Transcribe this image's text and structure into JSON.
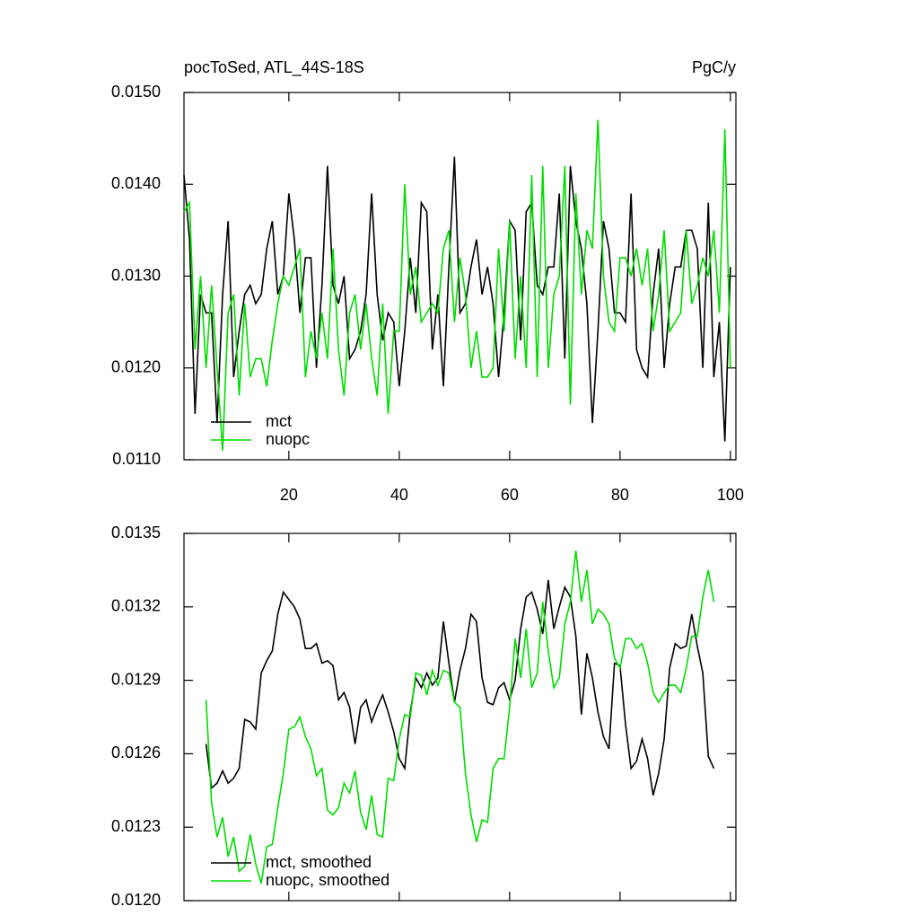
{
  "chart_data": [
    {
      "type": "line",
      "title": "pocToSed, ATL_44S-18S",
      "units": "PgC/y",
      "x": [
        1,
        2,
        3,
        4,
        5,
        6,
        7,
        8,
        9,
        10,
        11,
        12,
        13,
        14,
        15,
        16,
        17,
        18,
        19,
        20,
        21,
        22,
        23,
        24,
        25,
        26,
        27,
        28,
        29,
        30,
        31,
        32,
        33,
        34,
        35,
        36,
        37,
        38,
        39,
        40,
        41,
        42,
        43,
        44,
        45,
        46,
        47,
        48,
        49,
        50,
        51,
        52,
        53,
        54,
        55,
        56,
        57,
        58,
        59,
        60,
        61,
        62,
        63,
        64,
        65,
        66,
        67,
        68,
        69,
        70,
        71,
        72,
        73,
        74,
        75,
        76,
        77,
        78,
        79,
        80,
        81,
        82,
        83,
        84,
        85,
        86,
        87,
        88,
        89,
        90,
        91,
        92,
        93,
        94,
        95,
        96,
        97,
        98,
        99,
        100
      ],
      "series": [
        {
          "name": "mct",
          "color": "#000000",
          "values": [
            0.0141,
            0.0134,
            0.0115,
            0.0128,
            0.0126,
            0.0126,
            0.0114,
            0.0128,
            0.0136,
            0.0119,
            0.0124,
            0.0128,
            0.0129,
            0.0127,
            0.0128,
            0.0133,
            0.0136,
            0.0128,
            0.013,
            0.0139,
            0.0134,
            0.0126,
            0.0132,
            0.0132,
            0.012,
            0.0129,
            0.0142,
            0.0129,
            0.0127,
            0.013,
            0.0121,
            0.0122,
            0.0124,
            0.0128,
            0.0139,
            0.0128,
            0.0123,
            0.0126,
            0.0125,
            0.0118,
            0.0124,
            0.0132,
            0.0126,
            0.0138,
            0.0137,
            0.0122,
            0.0128,
            0.0118,
            0.0131,
            0.0143,
            0.0126,
            0.0127,
            0.0131,
            0.0134,
            0.0128,
            0.0131,
            0.0127,
            0.0119,
            0.0126,
            0.0136,
            0.0135,
            0.0123,
            0.0137,
            0.0138,
            0.0129,
            0.0128,
            0.0131,
            0.0131,
            0.0139,
            0.0121,
            0.0142,
            0.0136,
            0.0133,
            0.0127,
            0.0114,
            0.0124,
            0.0136,
            0.0133,
            0.0126,
            0.0126,
            0.0125,
            0.0139,
            0.0122,
            0.012,
            0.0119,
            0.0128,
            0.0133,
            0.012,
            0.0127,
            0.0131,
            0.0131,
            0.0135,
            0.0135,
            0.0133,
            0.012,
            0.0138,
            0.0119,
            0.0125,
            0.0112,
            0.0131
          ]
        },
        {
          "name": "nuopc",
          "color": "#00dd00",
          "values": [
            0.0137,
            0.0138,
            0.0122,
            0.013,
            0.012,
            0.0129,
            0.012,
            0.0111,
            0.0126,
            0.0128,
            0.0117,
            0.0127,
            0.0119,
            0.0121,
            0.0121,
            0.0118,
            0.0123,
            0.0127,
            0.013,
            0.0129,
            0.0131,
            0.0133,
            0.0119,
            0.0124,
            0.0121,
            0.0126,
            0.0121,
            0.0133,
            0.0122,
            0.0117,
            0.0126,
            0.0128,
            0.0122,
            0.0127,
            0.0121,
            0.0117,
            0.0127,
            0.0115,
            0.0124,
            0.0124,
            0.014,
            0.0128,
            0.0131,
            0.0125,
            0.0126,
            0.0127,
            0.0126,
            0.0133,
            0.0135,
            0.0125,
            0.0132,
            0.0128,
            0.012,
            0.0124,
            0.0119,
            0.0119,
            0.012,
            0.0133,
            0.0124,
            0.0136,
            0.0121,
            0.013,
            0.012,
            0.0141,
            0.0119,
            0.0142,
            0.012,
            0.0128,
            0.013,
            0.0142,
            0.0116,
            0.0139,
            0.0128,
            0.0135,
            0.0133,
            0.0147,
            0.013,
            0.0125,
            0.0124,
            0.0132,
            0.0132,
            0.013,
            0.0133,
            0.0129,
            0.0133,
            0.0124,
            0.0128,
            0.0135,
            0.0124,
            0.0125,
            0.0126,
            0.0135,
            0.0127,
            0.0129,
            0.0132,
            0.013,
            0.0135,
            0.0126,
            0.0146,
            0.012
          ]
        }
      ],
      "xlim": [
        1,
        101
      ],
      "xticks": [
        20,
        40,
        60,
        80,
        100
      ],
      "xtick_labels": true,
      "ylim": [
        0.011,
        0.015
      ],
      "yticks": [
        {
          "value": 0.011,
          "label": "0.0110"
        },
        {
          "value": 0.012,
          "label": "0.0120"
        },
        {
          "value": 0.013,
          "label": "0.0130"
        },
        {
          "value": 0.014,
          "label": "0.0140"
        },
        {
          "value": 0.015,
          "label": "0.0150"
        }
      ],
      "legend": "lower left"
    },
    {
      "type": "line",
      "x": [
        5,
        6,
        7,
        8,
        9,
        10,
        11,
        12,
        13,
        14,
        15,
        16,
        17,
        18,
        19,
        20,
        21,
        22,
        23,
        24,
        25,
        26,
        27,
        28,
        29,
        30,
        31,
        32,
        33,
        34,
        35,
        36,
        37,
        38,
        39,
        40,
        41,
        42,
        43,
        44,
        45,
        46,
        47,
        48,
        49,
        50,
        51,
        52,
        53,
        54,
        55,
        56,
        57,
        58,
        59,
        60,
        61,
        62,
        63,
        64,
        65,
        66,
        67,
        68,
        69,
        70,
        71,
        72,
        73,
        74,
        75,
        76,
        77,
        78,
        79,
        80,
        81,
        82,
        83,
        84,
        85,
        86,
        87,
        88,
        89,
        90,
        91,
        92,
        93,
        94,
        95,
        96,
        97
      ],
      "series": [
        {
          "name": "mct, smoothed",
          "color": "#000000",
          "values": [
            0.01264,
            0.01246,
            0.01248,
            0.01253,
            0.01248,
            0.0125,
            0.01254,
            0.01274,
            0.01273,
            0.0127,
            0.01293,
            0.01298,
            0.01302,
            0.01317,
            0.01326,
            0.01323,
            0.0132,
            0.01315,
            0.01303,
            0.01303,
            0.01305,
            0.01297,
            0.01298,
            0.01296,
            0.01282,
            0.01285,
            0.01279,
            0.01264,
            0.01279,
            0.01282,
            0.01273,
            0.01279,
            0.01284,
            0.01277,
            0.01269,
            0.01258,
            0.01254,
            0.01277,
            0.01291,
            0.01287,
            0.01293,
            0.01288,
            0.01291,
            0.01314,
            0.01297,
            0.01281,
            0.01294,
            0.01303,
            0.01317,
            0.01314,
            0.01291,
            0.01281,
            0.0128,
            0.01287,
            0.01289,
            0.01282,
            0.0129,
            0.01311,
            0.01324,
            0.01326,
            0.01319,
            0.01309,
            0.01331,
            0.01311,
            0.0132,
            0.01328,
            0.01324,
            0.01308,
            0.01276,
            0.01301,
            0.01291,
            0.01277,
            0.01267,
            0.01262,
            0.01297,
            0.01296,
            0.01272,
            0.01254,
            0.01257,
            0.01266,
            0.01258,
            0.01243,
            0.01252,
            0.01266,
            0.01295,
            0.01305,
            0.01303,
            0.01304,
            0.01317,
            0.01304,
            0.01293,
            0.01259,
            0.01254
          ]
        },
        {
          "name": "nuopc, smoothed",
          "color": "#00dd00",
          "values": [
            0.01282,
            0.0124,
            0.01226,
            0.01234,
            0.01218,
            0.01226,
            0.01212,
            0.01214,
            0.01227,
            0.01215,
            0.01207,
            0.01222,
            0.01223,
            0.01238,
            0.01252,
            0.0127,
            0.01271,
            0.01275,
            0.01267,
            0.01262,
            0.01251,
            0.01254,
            0.01237,
            0.01235,
            0.01238,
            0.01248,
            0.01244,
            0.01253,
            0.01236,
            0.01229,
            0.01243,
            0.01227,
            0.01226,
            0.0125,
            0.01249,
            0.01266,
            0.01276,
            0.01275,
            0.01293,
            0.01292,
            0.01284,
            0.01294,
            0.01288,
            0.01294,
            0.01293,
            0.01281,
            0.01279,
            0.01252,
            0.01235,
            0.01224,
            0.01233,
            0.01232,
            0.01254,
            0.01258,
            0.01258,
            0.01279,
            0.01307,
            0.01291,
            0.01311,
            0.01287,
            0.01293,
            0.01322,
            0.01302,
            0.01287,
            0.01291,
            0.01313,
            0.01322,
            0.01343,
            0.01322,
            0.01335,
            0.01313,
            0.01319,
            0.01317,
            0.01313,
            0.01299,
            0.01295,
            0.01307,
            0.01307,
            0.01303,
            0.01305,
            0.01297,
            0.01285,
            0.01281,
            0.01285,
            0.01288,
            0.01288,
            0.01285,
            0.01295,
            0.01308,
            0.01308,
            0.01324,
            0.01335,
            0.01322
          ]
        }
      ],
      "xlim": [
        1,
        101
      ],
      "xticks": [
        20,
        40,
        60,
        80,
        100
      ],
      "xtick_labels": false,
      "ylim": [
        0.012,
        0.0135
      ],
      "yticks": [
        {
          "value": 0.012,
          "label": "0.0120"
        },
        {
          "value": 0.0123,
          "label": "0.0123"
        },
        {
          "value": 0.0126,
          "label": "0.0126"
        },
        {
          "value": 0.0129,
          "label": "0.0129"
        },
        {
          "value": 0.0132,
          "label": "0.0132"
        },
        {
          "value": 0.0135,
          "label": "0.0135"
        }
      ],
      "legend": "lower left"
    }
  ]
}
